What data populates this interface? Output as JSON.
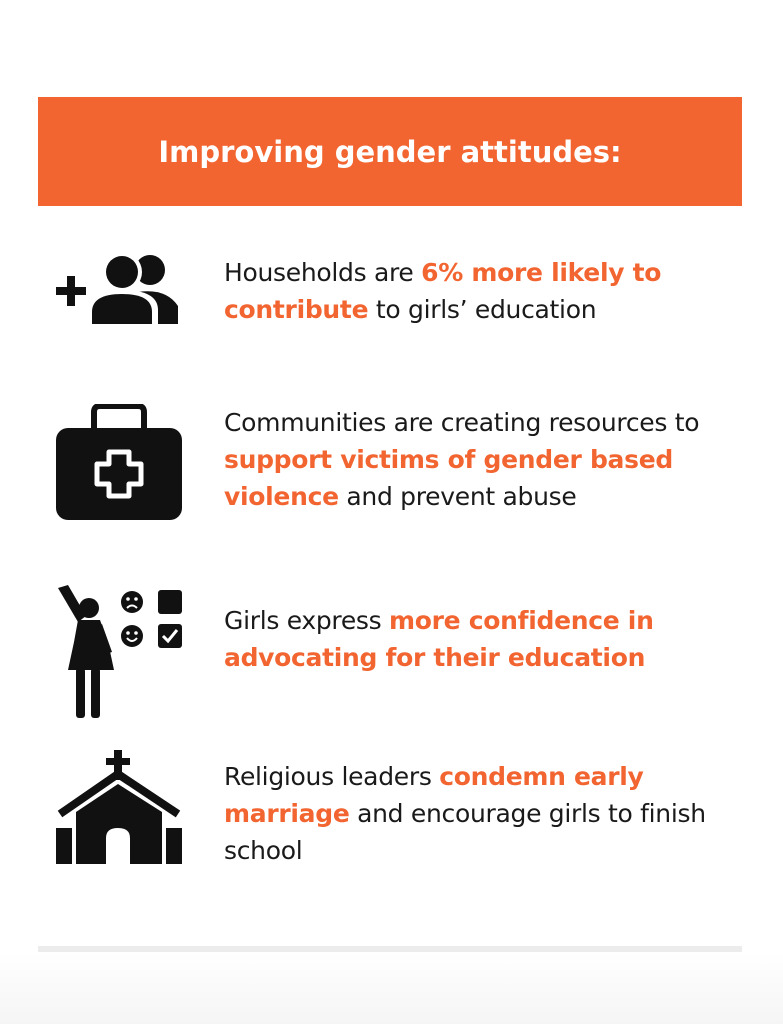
{
  "header": {
    "title": "Improving gender attitudes:",
    "color": "#f26430"
  },
  "items": [
    {
      "icon": "add-people-icon",
      "pre": "Households are ",
      "highlight": "6% more likely to contribute",
      "post": " to girls’ education"
    },
    {
      "icon": "first-aid-kit-icon",
      "pre": "Communities are creating resources to ",
      "highlight": "support victims of gender based violence",
      "post": " and prevent abuse"
    },
    {
      "icon": "girl-raising-hand-icon",
      "pre": "Girls express ",
      "highlight": "more confidence in advocating for their education",
      "post": ""
    },
    {
      "icon": "church-icon",
      "pre": "Religious leaders ",
      "highlight": "condemn early marriage",
      "post": " and encourage girls to finish school"
    }
  ]
}
